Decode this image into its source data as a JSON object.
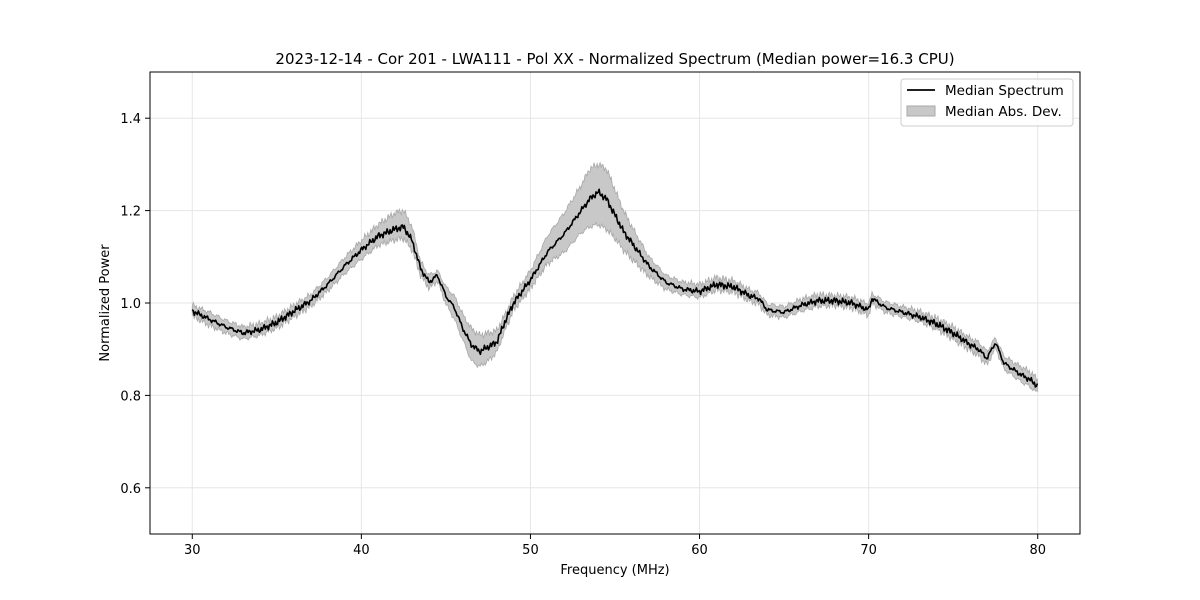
{
  "chart_data": {
    "type": "line",
    "title": "2023-12-14 - Cor 201 - LWA111 - Pol XX - Normalized Spectrum (Median power=16.3 CPU)",
    "xlabel": "Frequency (MHz)",
    "ylabel": "Normalized Power",
    "xlim": [
      27.5,
      82.5
    ],
    "ylim": [
      0.5,
      1.5
    ],
    "xticks": [
      30,
      40,
      50,
      60,
      70,
      80
    ],
    "yticks": [
      0.6,
      0.8,
      1.0,
      1.2,
      1.4
    ],
    "grid": true,
    "legend": {
      "position": "top-right",
      "entries": [
        "Median Spectrum",
        "Median Abs. Dev."
      ]
    },
    "colors": {
      "line": "#000000",
      "band_fill": "#c8c8c8",
      "band_edge": "#a8a8a8",
      "grid": "#e6e6e6"
    },
    "series": [
      {
        "name": "Median Spectrum",
        "kind": "line",
        "x": [
          30,
          31,
          32,
          33,
          34,
          35,
          36,
          37,
          38,
          39,
          40,
          41,
          42,
          42.5,
          43,
          43.5,
          44,
          44.5,
          45,
          45.5,
          46,
          46.5,
          47,
          47.5,
          48,
          48.5,
          49,
          50,
          51,
          52,
          53,
          53.5,
          54,
          54.5,
          55,
          55.5,
          56,
          57,
          58,
          59,
          60,
          61,
          62,
          63,
          63.5,
          64,
          65,
          66,
          67,
          68,
          69,
          70,
          70.2,
          71,
          72,
          73,
          74,
          75,
          76,
          76.5,
          77,
          77.5,
          78,
          79,
          79.5,
          80
        ],
        "y": [
          0.983,
          0.965,
          0.948,
          0.935,
          0.942,
          0.958,
          0.982,
          1.005,
          1.04,
          1.08,
          1.115,
          1.145,
          1.16,
          1.165,
          1.135,
          1.075,
          1.045,
          1.06,
          1.015,
          0.99,
          0.945,
          0.91,
          0.895,
          0.905,
          0.915,
          0.96,
          1.0,
          1.05,
          1.11,
          1.15,
          1.2,
          1.225,
          1.24,
          1.225,
          1.19,
          1.155,
          1.13,
          1.08,
          1.045,
          1.03,
          1.025,
          1.04,
          1.035,
          1.015,
          1.01,
          0.985,
          0.98,
          0.995,
          1.005,
          1.005,
          1.0,
          0.985,
          1.01,
          0.99,
          0.98,
          0.97,
          0.955,
          0.935,
          0.91,
          0.9,
          0.88,
          0.915,
          0.87,
          0.845,
          0.835,
          0.82
        ]
      },
      {
        "name": "Median Abs. Dev.",
        "kind": "band",
        "x": [
          30,
          31,
          32,
          33,
          34,
          35,
          36,
          37,
          38,
          39,
          40,
          41,
          42,
          42.5,
          43,
          43.5,
          44,
          44.5,
          45,
          45.5,
          46,
          46.5,
          47,
          47.5,
          48,
          48.5,
          49,
          50,
          51,
          52,
          53,
          53.5,
          54,
          54.5,
          55,
          55.5,
          56,
          57,
          58,
          59,
          60,
          61,
          62,
          63,
          63.5,
          64,
          65,
          66,
          67,
          68,
          69,
          70,
          70.2,
          71,
          72,
          73,
          74,
          75,
          76,
          76.5,
          77,
          77.5,
          78,
          79,
          79.5,
          80
        ],
        "upper": [
          0.995,
          0.98,
          0.962,
          0.948,
          0.955,
          0.97,
          0.995,
          1.018,
          1.055,
          1.098,
          1.135,
          1.17,
          1.195,
          1.2,
          1.165,
          1.09,
          1.06,
          1.07,
          1.035,
          1.015,
          0.975,
          0.945,
          0.93,
          0.935,
          0.94,
          0.975,
          1.015,
          1.07,
          1.145,
          1.195,
          1.255,
          1.29,
          1.3,
          1.29,
          1.245,
          1.2,
          1.165,
          1.1,
          1.06,
          1.045,
          1.04,
          1.055,
          1.048,
          1.028,
          1.022,
          0.998,
          0.992,
          1.008,
          1.018,
          1.016,
          1.012,
          0.998,
          1.02,
          1.002,
          0.992,
          0.982,
          0.967,
          0.948,
          0.924,
          0.915,
          0.895,
          0.925,
          0.885,
          0.862,
          0.852,
          0.835
        ],
        "lower": [
          0.972,
          0.952,
          0.935,
          0.922,
          0.93,
          0.946,
          0.97,
          0.993,
          1.026,
          1.063,
          1.095,
          1.125,
          1.137,
          1.14,
          1.115,
          1.06,
          1.032,
          1.048,
          0.998,
          0.965,
          0.92,
          0.875,
          0.862,
          0.875,
          0.893,
          0.942,
          0.985,
          1.032,
          1.085,
          1.11,
          1.152,
          1.165,
          1.17,
          1.16,
          1.14,
          1.115,
          1.095,
          1.058,
          1.03,
          1.018,
          1.012,
          1.028,
          1.024,
          1.004,
          0.998,
          0.974,
          0.969,
          0.982,
          0.993,
          0.995,
          0.99,
          0.973,
          1.0,
          0.98,
          0.97,
          0.96,
          0.944,
          0.922,
          0.898,
          0.886,
          0.866,
          0.903,
          0.857,
          0.83,
          0.82,
          0.805
        ]
      }
    ]
  }
}
